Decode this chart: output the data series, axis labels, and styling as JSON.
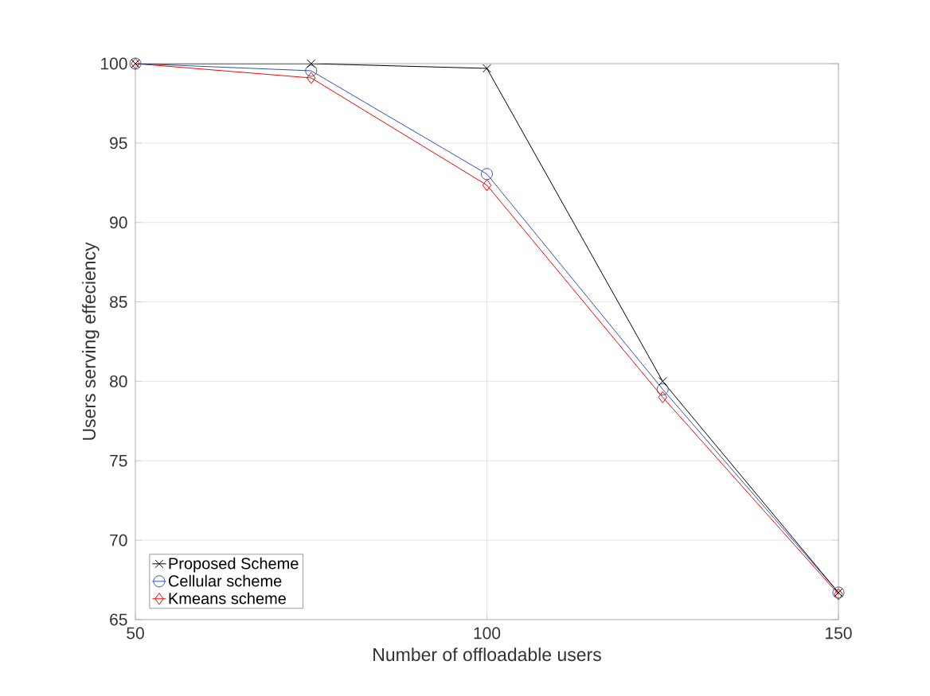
{
  "chart_data": {
    "type": "line",
    "xlabel": "Number of offloadable users",
    "ylabel": "Users serving effeciency",
    "x": [
      50,
      75,
      100,
      125,
      150
    ],
    "series": [
      {
        "name": "Proposed  Scheme",
        "color": "#000000",
        "marker": "cross",
        "values": [
          100,
          100,
          99.7,
          80.0,
          66.7
        ]
      },
      {
        "name": "Cellular scheme",
        "color": "#3050b0",
        "marker": "circle",
        "values": [
          100,
          99.55,
          93.05,
          79.5,
          66.7
        ]
      },
      {
        "name": "Kmeans scheme",
        "color": "#ff0000",
        "marker": "diamond",
        "values": [
          100,
          99.1,
          92.35,
          79.0,
          66.6
        ]
      }
    ],
    "xlim": [
      50,
      150
    ],
    "xticks": [
      50,
      100,
      150
    ],
    "ylim": [
      65,
      100
    ],
    "yticks": [
      65,
      70,
      75,
      80,
      85,
      90,
      95,
      100
    ],
    "grid": true,
    "legend": "bottom left",
    "line_style": "solid"
  }
}
